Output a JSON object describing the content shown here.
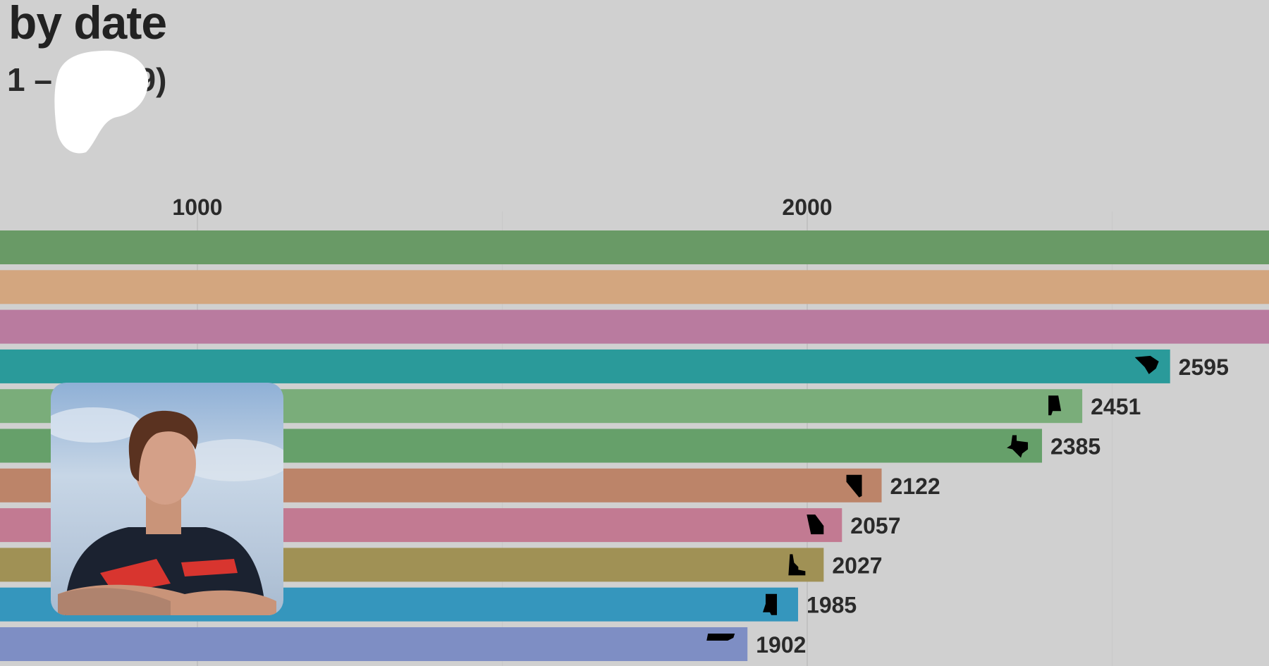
{
  "header": {
    "title": "by date",
    "subtitle_left": "1 –",
    "subtitle_right": "19)"
  },
  "chart_data": {
    "type": "bar",
    "orientation": "horizontal",
    "title": "by date",
    "x_ticks": [
      1000,
      2000
    ],
    "x_tick_labels": [
      "1000",
      "2000"
    ],
    "grid": true,
    "bars": [
      {
        "value": null,
        "label": "",
        "color": "#699a66",
        "icon": "state-icon",
        "clipped": true
      },
      {
        "value": null,
        "label": "",
        "color": "#d3a67f",
        "icon": "state-icon",
        "clipped": true
      },
      {
        "value": null,
        "label": "",
        "color": "#b97b9f",
        "icon": "state-icon",
        "clipped": true
      },
      {
        "value": 2595,
        "label": "2595",
        "color": "#2a9a9a",
        "icon": "south-carolina-icon"
      },
      {
        "value": 2451,
        "label": "2451",
        "color": "#7aad7a",
        "icon": "alabama-icon"
      },
      {
        "value": 2385,
        "label": "2385",
        "color": "#66a06a",
        "icon": "texas-icon"
      },
      {
        "value": 2122,
        "label": "2122",
        "color": "#bc8469",
        "icon": "nevada-icon"
      },
      {
        "value": 2057,
        "label": "2057",
        "color": "#c27a92",
        "icon": "georgia-icon"
      },
      {
        "value": 2027,
        "label": "2027",
        "color": "#a09155",
        "icon": "idaho-icon"
      },
      {
        "value": 1985,
        "label": "1985",
        "color": "#3596bd",
        "icon": "mississippi-icon"
      },
      {
        "value": 1902,
        "label": "1902",
        "color": "#7e8ec4",
        "icon": "tennessee-icon"
      }
    ]
  }
}
